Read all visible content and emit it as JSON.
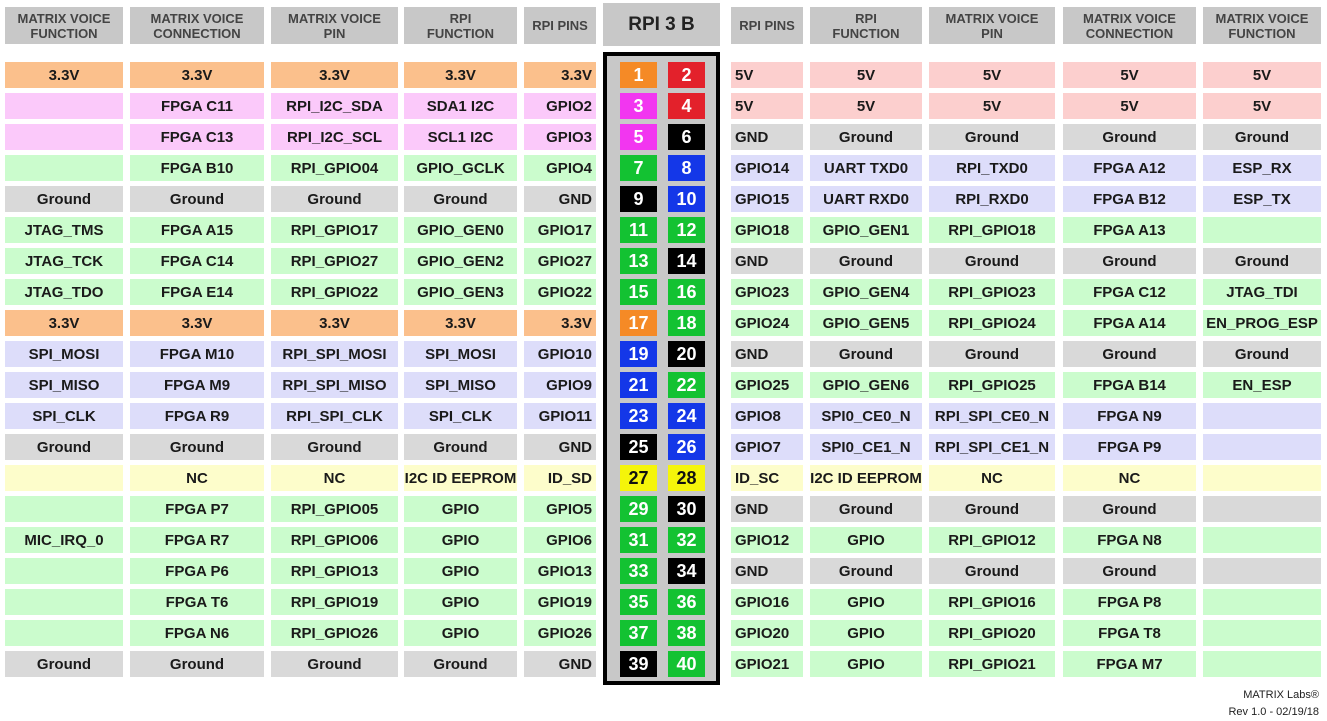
{
  "headers": {
    "left": [
      "MATRIX VOICE\nFUNCTION",
      "MATRIX VOICE\nCONNECTION",
      "MATRIX VOICE\nPIN",
      "RPI\nFUNCTION",
      "RPI PINS"
    ],
    "center": "RPI 3 B",
    "right": [
      "RPI PINS",
      "RPI\nFUNCTION",
      "MATRIX VOICE\nPIN",
      "MATRIX VOICE\nCONNECTION",
      "MATRIX VOICE\nFUNCTION"
    ]
  },
  "colors": {
    "power33": "#fbc08c",
    "power5": "#fccfce",
    "i2c": "#fbc9fa",
    "gpio": "#cbfccd",
    "ground": "#d9d9d9",
    "blue": "#ddddfa",
    "yellow": "#fdfdcb",
    "pin_orange": "#f58a26",
    "pin_red": "#e3212b",
    "pin_magenta": "#f236f0",
    "pin_green": "#13c232",
    "pin_blue": "#1437e8",
    "pin_black": "#000000",
    "pin_yellow": "#f5f50a"
  },
  "rows": [
    {
      "left": [
        "3.3V",
        "3.3V",
        "3.3V",
        "3.3V",
        "3.3V"
      ],
      "lc": "power33",
      "lp": "1",
      "lpc": "pin_orange",
      "rp": "2",
      "rpc": "pin_red",
      "right": [
        "5V",
        "5V",
        "5V",
        "5V",
        "5V"
      ],
      "rc": "power5"
    },
    {
      "left": [
        "",
        "FPGA C11",
        "RPI_I2C_SDA",
        "SDA1 I2C",
        "GPIO2"
      ],
      "lc": "i2c",
      "lp": "3",
      "lpc": "pin_magenta",
      "rp": "4",
      "rpc": "pin_red",
      "right": [
        "5V",
        "5V",
        "5V",
        "5V",
        "5V"
      ],
      "rc": "power5"
    },
    {
      "left": [
        "",
        "FPGA C13",
        "RPI_I2C_SCL",
        "SCL1 I2C",
        "GPIO3"
      ],
      "lc": "i2c",
      "lp": "5",
      "lpc": "pin_magenta",
      "rp": "6",
      "rpc": "pin_black",
      "right": [
        "GND",
        "Ground",
        "Ground",
        "Ground",
        "Ground"
      ],
      "rc": "ground"
    },
    {
      "left": [
        "",
        "FPGA B10",
        "RPI_GPIO04",
        "GPIO_GCLK",
        "GPIO4"
      ],
      "lc": "gpio",
      "lp": "7",
      "lpc": "pin_green",
      "rp": "8",
      "rpc": "pin_blue",
      "right": [
        "GPIO14",
        "UART TXD0",
        "RPI_TXD0",
        "FPGA A12",
        "ESP_RX"
      ],
      "rc": "blue"
    },
    {
      "left": [
        "Ground",
        "Ground",
        "Ground",
        "Ground",
        "GND"
      ],
      "lc": "ground",
      "lp": "9",
      "lpc": "pin_black",
      "rp": "10",
      "rpc": "pin_blue",
      "right": [
        "GPIO15",
        "UART RXD0",
        "RPI_RXD0",
        "FPGA B12",
        "ESP_TX"
      ],
      "rc": "blue"
    },
    {
      "left": [
        "JTAG_TMS",
        "FPGA A15",
        "RPI_GPIO17",
        "GPIO_GEN0",
        "GPIO17"
      ],
      "lc": "gpio",
      "lp": "11",
      "lpc": "pin_green",
      "rp": "12",
      "rpc": "pin_green",
      "right": [
        "GPIO18",
        "GPIO_GEN1",
        "RPI_GPIO18",
        "FPGA A13",
        ""
      ],
      "rc": "gpio"
    },
    {
      "left": [
        "JTAG_TCK",
        "FPGA C14",
        "RPI_GPIO27",
        "GPIO_GEN2",
        "GPIO27"
      ],
      "lc": "gpio",
      "lp": "13",
      "lpc": "pin_green",
      "rp": "14",
      "rpc": "pin_black",
      "right": [
        "GND",
        "Ground",
        "Ground",
        "Ground",
        "Ground"
      ],
      "rc": "ground"
    },
    {
      "left": [
        "JTAG_TDO",
        "FPGA E14",
        "RPI_GPIO22",
        "GPIO_GEN3",
        "GPIO22"
      ],
      "lc": "gpio",
      "lp": "15",
      "lpc": "pin_green",
      "rp": "16",
      "rpc": "pin_green",
      "right": [
        "GPIO23",
        "GPIO_GEN4",
        "RPI_GPIO23",
        "FPGA C12",
        "JTAG_TDI"
      ],
      "rc": "gpio"
    },
    {
      "left": [
        "3.3V",
        "3.3V",
        "3.3V",
        "3.3V",
        "3.3V"
      ],
      "lc": "power33",
      "lp": "17",
      "lpc": "pin_orange",
      "rp": "18",
      "rpc": "pin_green",
      "right": [
        "GPIO24",
        "GPIO_GEN5",
        "RPI_GPIO24",
        "FPGA A14",
        "EN_PROG_ESP"
      ],
      "rc": "gpio"
    },
    {
      "left": [
        "SPI_MOSI",
        "FPGA M10",
        "RPI_SPI_MOSI",
        "SPI_MOSI",
        "GPIO10"
      ],
      "lc": "blue",
      "lp": "19",
      "lpc": "pin_blue",
      "rp": "20",
      "rpc": "pin_black",
      "right": [
        "GND",
        "Ground",
        "Ground",
        "Ground",
        "Ground"
      ],
      "rc": "ground"
    },
    {
      "left": [
        "SPI_MISO",
        "FPGA M9",
        "RPI_SPI_MISO",
        "SPI_MISO",
        "GPIO9"
      ],
      "lc": "blue",
      "lp": "21",
      "lpc": "pin_blue",
      "rp": "22",
      "rpc": "pin_green",
      "right": [
        "GPIO25",
        "GPIO_GEN6",
        "RPI_GPIO25",
        "FPGA B14",
        "EN_ESP"
      ],
      "rc": "gpio"
    },
    {
      "left": [
        "SPI_CLK",
        "FPGA R9",
        "RPI_SPI_CLK",
        "SPI_CLK",
        "GPIO11"
      ],
      "lc": "blue",
      "lp": "23",
      "lpc": "pin_blue",
      "rp": "24",
      "rpc": "pin_blue",
      "right": [
        "GPIO8",
        "SPI0_CE0_N",
        "RPI_SPI_CE0_N",
        "FPGA N9",
        ""
      ],
      "rc": "blue"
    },
    {
      "left": [
        "Ground",
        "Ground",
        "Ground",
        "Ground",
        "GND"
      ],
      "lc": "ground",
      "lp": "25",
      "lpc": "pin_black",
      "rp": "26",
      "rpc": "pin_blue",
      "right": [
        "GPIO7",
        "SPI0_CE1_N",
        "RPI_SPI_CE1_N",
        "FPGA P9",
        ""
      ],
      "rc": "blue"
    },
    {
      "left": [
        "",
        "NC",
        "NC",
        "I2C ID EEPROM",
        "ID_SD"
      ],
      "lc": "yellow",
      "lp": "27",
      "lpc": "pin_yellow",
      "rp": "28",
      "rpc": "pin_yellow",
      "right": [
        "ID_SC",
        "I2C ID EEPROM",
        "NC",
        "NC",
        ""
      ],
      "rc": "yellow"
    },
    {
      "left": [
        "",
        "FPGA P7",
        "RPI_GPIO05",
        "GPIO",
        "GPIO5"
      ],
      "lc": "gpio",
      "lp": "29",
      "lpc": "pin_green",
      "rp": "30",
      "rpc": "pin_black",
      "right": [
        "GND",
        "Ground",
        "Ground",
        "Ground",
        ""
      ],
      "rc": "ground"
    },
    {
      "left": [
        "MIC_IRQ_0",
        "FPGA R7",
        "RPI_GPIO06",
        "GPIO",
        "GPIO6"
      ],
      "lc": "gpio",
      "lp": "31",
      "lpc": "pin_green",
      "rp": "32",
      "rpc": "pin_green",
      "right": [
        "GPIO12",
        "GPIO",
        "RPI_GPIO12",
        "FPGA N8",
        ""
      ],
      "rc": "gpio"
    },
    {
      "left": [
        "",
        "FPGA P6",
        "RPI_GPIO13",
        "GPIO",
        "GPIO13"
      ],
      "lc": "gpio",
      "lp": "33",
      "lpc": "pin_green",
      "rp": "34",
      "rpc": "pin_black",
      "right": [
        "GND",
        "Ground",
        "Ground",
        "Ground",
        ""
      ],
      "rc": "ground"
    },
    {
      "left": [
        "",
        "FPGA T6",
        "RPI_GPIO19",
        "GPIO",
        "GPIO19"
      ],
      "lc": "gpio",
      "lp": "35",
      "lpc": "pin_green",
      "rp": "36",
      "rpc": "pin_green",
      "right": [
        "GPIO16",
        "GPIO",
        "RPI_GPIO16",
        "FPGA P8",
        ""
      ],
      "rc": "gpio"
    },
    {
      "left": [
        "",
        "FPGA N6",
        "RPI_GPIO26",
        "GPIO",
        "GPIO26"
      ],
      "lc": "gpio",
      "lp": "37",
      "lpc": "pin_green",
      "rp": "38",
      "rpc": "pin_green",
      "right": [
        "GPIO20",
        "GPIO",
        "RPI_GPIO20",
        "FPGA T8",
        ""
      ],
      "rc": "gpio"
    },
    {
      "left": [
        "Ground",
        "Ground",
        "Ground",
        "Ground",
        "GND"
      ],
      "lc": "ground",
      "lp": "39",
      "lpc": "pin_black",
      "rp": "40",
      "rpc": "pin_green",
      "right": [
        "GPIO21",
        "GPIO",
        "RPI_GPIO21",
        "FPGA M7",
        ""
      ],
      "rc": "gpio"
    }
  ],
  "footer": {
    "brand": "MATRIX Labs®",
    "revision": "Rev 1.0 - 02/19/18"
  }
}
